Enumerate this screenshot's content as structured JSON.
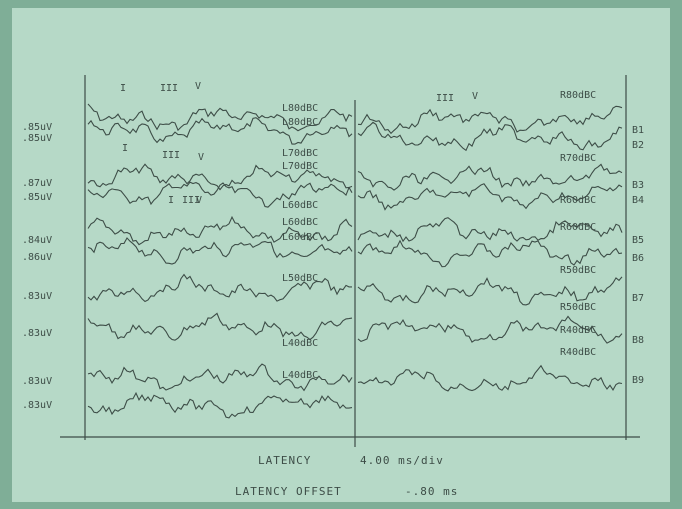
{
  "amplitude_labels": [
    ".85uV",
    ".85uV",
    ".87uV",
    ".85uV",
    ".84uV",
    ".86uV",
    ".83uV",
    ".83uV",
    ".83uV",
    ".83uV"
  ],
  "channel_labels": [
    "B1",
    "B2",
    "B3",
    "B4",
    "B5",
    "B6",
    "B7",
    "B8",
    "B9"
  ],
  "left_trace_labels": [
    "L80dBC",
    "L80dBC",
    "L70dBC",
    "L70dBC",
    "L60dBC",
    "L60dBC",
    "L60dBC",
    "L50dBC",
    "L40dBC",
    "L40dBC"
  ],
  "right_trace_labels": [
    "R80dBC",
    "R70dBC",
    "R60dBC",
    "R60dBC",
    "R50dBC",
    "R50dBC",
    "R40dBC",
    "R40dBC"
  ],
  "peak_labels": [
    "I",
    "III",
    "V",
    "I",
    "III",
    "V",
    "I",
    "III",
    "V",
    "III",
    "V"
  ],
  "footer": {
    "latency": "LATENCY",
    "scale": "4.00 ms/div",
    "offset_label": "LATENCY OFFSET",
    "offset": "-.80 ms"
  }
}
